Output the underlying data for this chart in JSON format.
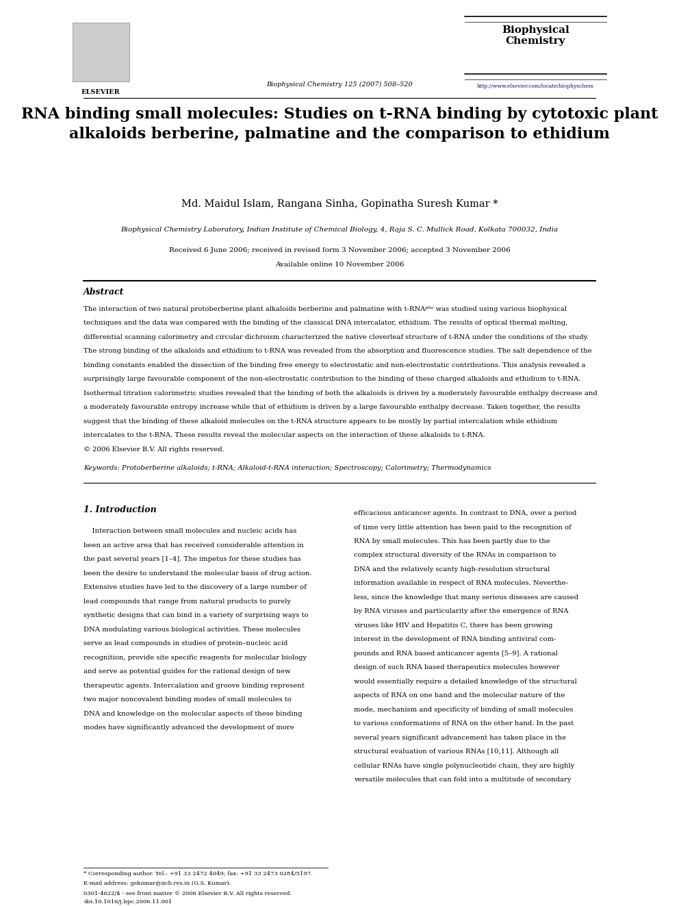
{
  "bg_color": "#ffffff",
  "page_width": 9.92,
  "page_height": 13.23,
  "journal_name": "Biophysical\nChemistry",
  "journal_url": "http://www.elsevier.com/locate/biophyschem",
  "journal_citation": "Biophysical Chemistry 125 (2007) 508–520",
  "title": "RNA binding small molecules: Studies on t-RNA binding by cytotoxic plant\nalkaloids berberine, palmatine and the comparison to ethidium",
  "authors": "Md. Maidul Islam, Rangana Sinha, Gopinatha Suresh Kumar *",
  "affiliation": "Biophysical Chemistry Laboratory, Indian Institute of Chemical Biology, 4, Raja S. C. Mullick Road, Kolkata 700032, India",
  "received": "Received 6 June 2006; received in revised form 3 November 2006; accepted 3 November 2006",
  "available": "Available online 10 November 2006",
  "abstract_title": "Abstract",
  "abstract_text": "The interaction of two natural protoberberine plant alkaloids berberine and palmatine with t-RNAᵖʰᵉ was studied using various biophysical\ntechniques and the data was compared with the binding of the classical DNA intercalator, ethidium. The results of optical thermal melting,\ndifferential scanning calorimetry and circular dichroism characterized the native cloverleaf structure of t-RNA under the conditions of the study.\nThe strong binding of the alkaloids and ethidium to t-RNA was revealed from the absorption and fluorescence studies. The salt dependence of the\nbinding constants enabled the dissection of the binding free energy to electrostatic and non-electrostatic contributions. This analysis revealed a\nsurprisingly large favourable component of the non-electrostatic contribution to the binding of these charged alkaloids and ethidium to t-RNA.\nIsothermal titration calorimetric studies revealed that the binding of both the alkaloids is driven by a moderately favourable enthalpy decrease and\na moderately favourable entropy increase while that of ethidium is driven by a large favourable enthalpy decrease. Taken together, the results\nsuggest that the binding of these alkaloid molecules on the t-RNA structure appears to be mostly by partial intercalation while ethidium\nintercalates to the t-RNA. These results reveal the molecular aspects on the interaction of these alkaloids to t-RNA.\n© 2006 Elsevier B.V. All rights reserved.",
  "keywords": "Keywords: Protoberberine alkaloids; t-RNA; Alkaloid-t-RNA interaction; Spectroscopy; Calorimetry; Thermodynamics",
  "section1_title": "1. Introduction",
  "section1_col1": "    Interaction between small molecules and nucleic acids has\nbeen an active area that has received considerable attention in\nthe past several years [1–4]. The impetus for these studies has\nbeen the desire to understand the molecular basis of drug action.\nExtensive studies have led to the discovery of a large number of\nlead compounds that range from natural products to purely\nsynthetic designs that can bind in a variety of surprising ways to\nDNA modulating various biological activities. These molecules\nserve as lead compounds in studies of protein–nucleic acid\nrecognition, provide site specific reagents for molecular biology\nand serve as potential guides for the rational design of new\ntherapeutic agents. Intercalation and groove binding represent\ntwo major noncovalent binding modes of small molecules to\nDNA and knowledge on the molecular aspects of these binding\nmodes have significantly advanced the development of more",
  "section1_col2": "efficacious anticancer agents. In contrast to DNA, over a period\nof time very little attention has been paid to the recognition of\nRNA by small molecules. This has been partly due to the\ncomplex structural diversity of the RNAs in comparison to\nDNA and the relatively scanty high-resolution structural\ninformation available in respect of RNA molecules. Neverthe-\nless, since the knowledge that many serious diseases are caused\nby RNA viruses and particularity after the emergence of RNA\nviruses like HIV and Hepatitis C, there has been growing\ninterest in the development of RNA binding antiviral com-\npounds and RNA based anticancer agents [5–9]. A rational\ndesign of such RNA based therapeutics molecules however\nwould essentially require a detailed knowledge of the structural\naspects of RNA on one hand and the molecular nature of the\nmode, mechanism and specificity of binding of small molecules\nto various conformations of RNA on the other hand. In the past\nseveral years significant advancement has taken place in the\nstructural evaluation of various RNAs [10,11]. Although all\ncellular RNAs have single polynucleotide chain, they are highly\nversatile molecules that can fold into a multitude of secondary",
  "footnote1": "* Corresponding author. Tel.: +91 33 2472 4049; fax: +91 33 2473 0284/5197.",
  "footnote2": "E-mail address: gskumar@iicb.res.in (G.S. Kumar).",
  "footnote3": "0301-4622/$ - see front matter © 2006 Elsevier B.V. All rights reserved.",
  "footnote4": "doi:10.1016/j.bpc.2006.11.001"
}
